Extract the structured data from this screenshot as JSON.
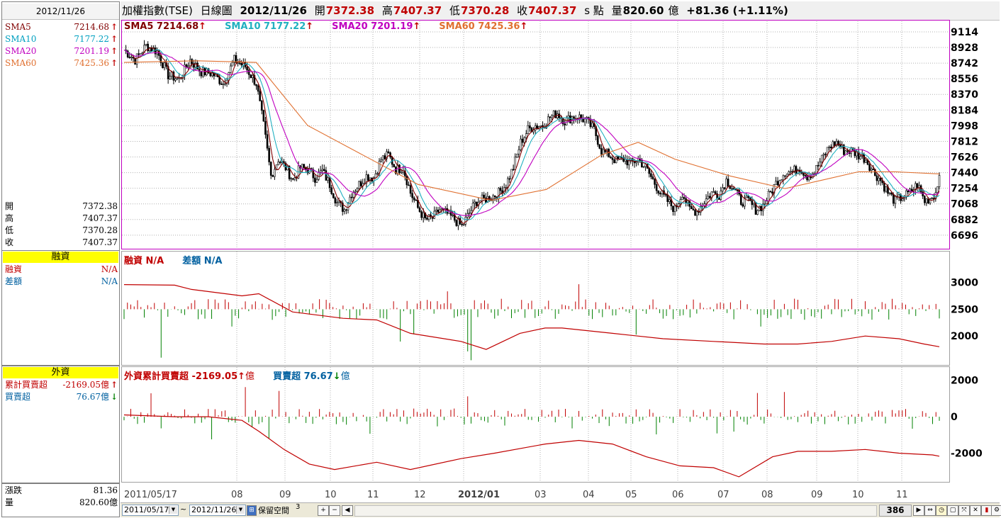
{
  "left": {
    "date": "2012/11/26",
    "sma": [
      {
        "label": "SMA5",
        "value": "7214.68",
        "color": "#800000"
      },
      {
        "label": "SMA10",
        "value": "7177.22",
        "color": "#00a0c0"
      },
      {
        "label": "SMA20",
        "value": "7201.19",
        "color": "#c000c0"
      },
      {
        "label": "SMA60",
        "value": "7425.36",
        "color": "#e07030"
      }
    ],
    "ohlc": [
      {
        "label": "開",
        "value": "7372.38"
      },
      {
        "label": "高",
        "value": "7407.37"
      },
      {
        "label": "低",
        "value": "7370.28"
      },
      {
        "label": "收",
        "value": "7407.37"
      }
    ],
    "margin_title": "融資",
    "margin_rows": [
      {
        "label": "融資",
        "value": "N/A",
        "color": "#c00000"
      },
      {
        "label": "差額",
        "value": "N/A",
        "color": "#0060a0"
      }
    ],
    "foreign_title": "外資",
    "foreign_rows": [
      {
        "label": "累計買賣超",
        "value": "-2169.05億",
        "color": "#c00000"
      },
      {
        "label": "買賣超",
        "value": "76.67億",
        "color": "#0060a0"
      }
    ],
    "bottom_rows": [
      {
        "label": "漲跌",
        "value": "81.36"
      },
      {
        "label": "量",
        "value": "820.60億"
      }
    ]
  },
  "header": {
    "title": "加權指數(TSE)",
    "period": "日線圖",
    "date": "2012/11/26",
    "open_label": "開",
    "open": "7372.38",
    "high_label": "高",
    "high": "7407.37",
    "low_label": "低",
    "low": "7370.28",
    "close_label": "收",
    "close": "7407.37",
    "unit": "s 點",
    "vol_label": "量",
    "vol": "820.60",
    "vol_unit": "億",
    "change": "+81.36 (+1.11%)"
  },
  "legends": {
    "price": [
      {
        "text": "SMA5 7214.68",
        "color": "#800000"
      },
      {
        "text": "SMA10 7177.22",
        "color": "#20b0c0"
      },
      {
        "text": "SMA20 7201.19",
        "color": "#c000c0"
      },
      {
        "text": "SMA60 7425.36",
        "color": "#e07030"
      }
    ],
    "margin": [
      {
        "text": "融資 N/A",
        "color": "#c00000"
      },
      {
        "text": "差額 N/A",
        "color": "#0060a0"
      }
    ],
    "foreign": [
      {
        "text": "外資累計買賣超 -2169.05",
        "suffix": "億",
        "color": "#c00000"
      },
      {
        "text": "買賣超 76.67",
        "suffix": "億",
        "color": "#0060a0"
      }
    ]
  },
  "toolbar": {
    "start_date": "2011/05/17",
    "tilde": "~",
    "end_date": "2012/11/26",
    "reserve_label": "保留空間",
    "reserve_value": "3",
    "bars": "386"
  },
  "chart_data": [
    {
      "type": "candlestick",
      "title": "加權指數(TSE) 日線圖",
      "x_ticks": [
        "2011/05/17",
        "08",
        "09",
        "10",
        "11",
        "12",
        "2012/01",
        "03",
        "04",
        "05",
        "06",
        "07",
        "08",
        "09",
        "10",
        "11"
      ],
      "y_ticks": [
        9114,
        8928,
        8742,
        8556,
        8370,
        8184,
        7998,
        7812,
        7626,
        7440,
        7254,
        7068,
        6882,
        6696
      ],
      "ylim": [
        6560,
        9240
      ],
      "close_path": [
        [
          0,
          8900
        ],
        [
          6,
          8780
        ],
        [
          12,
          8950
        ],
        [
          18,
          8880
        ],
        [
          24,
          8600
        ],
        [
          30,
          8550
        ],
        [
          36,
          8780
        ],
        [
          42,
          8640
        ],
        [
          48,
          8620
        ],
        [
          54,
          8500
        ],
        [
          60,
          8780
        ],
        [
          66,
          8700
        ],
        [
          72,
          8500
        ],
        [
          76,
          8000
        ],
        [
          80,
          7400
        ],
        [
          84,
          7600
        ],
        [
          88,
          7500
        ],
        [
          92,
          7350
        ],
        [
          96,
          7500
        ],
        [
          100,
          7480
        ],
        [
          104,
          7380
        ],
        [
          108,
          7460
        ],
        [
          112,
          7300
        ],
        [
          116,
          7080
        ],
        [
          120,
          7000
        ],
        [
          124,
          7200
        ],
        [
          128,
          7300
        ],
        [
          132,
          7400
        ],
        [
          136,
          7380
        ],
        [
          140,
          7600
        ],
        [
          144,
          7650
        ],
        [
          148,
          7480
        ],
        [
          152,
          7500
        ],
        [
          156,
          7200
        ],
        [
          160,
          7020
        ],
        [
          164,
          6880
        ],
        [
          168,
          6900
        ],
        [
          172,
          7000
        ],
        [
          176,
          6950
        ],
        [
          180,
          6880
        ],
        [
          184,
          6800
        ],
        [
          188,
          6960
        ],
        [
          192,
          7100
        ],
        [
          196,
          7120
        ],
        [
          200,
          7150
        ],
        [
          204,
          7200
        ],
        [
          208,
          7300
        ],
        [
          212,
          7500
        ],
        [
          216,
          7800
        ],
        [
          220,
          7950
        ],
        [
          224,
          8000
        ],
        [
          228,
          8000
        ],
        [
          232,
          8100
        ],
        [
          236,
          8150
        ],
        [
          240,
          8050
        ],
        [
          244,
          8100
        ],
        [
          248,
          8100
        ],
        [
          252,
          8050
        ],
        [
          256,
          7950
        ],
        [
          260,
          7700
        ],
        [
          264,
          7650
        ],
        [
          268,
          7580
        ],
        [
          272,
          7600
        ],
        [
          276,
          7550
        ],
        [
          280,
          7600
        ],
        [
          284,
          7500
        ],
        [
          288,
          7350
        ],
        [
          292,
          7200
        ],
        [
          296,
          7100
        ],
        [
          300,
          7000
        ],
        [
          304,
          7200
        ],
        [
          308,
          7000
        ],
        [
          312,
          6980
        ],
        [
          316,
          7100
        ],
        [
          320,
          7200
        ],
        [
          324,
          7180
        ],
        [
          328,
          7350
        ],
        [
          332,
          7250
        ],
        [
          336,
          7100
        ],
        [
          340,
          7100
        ],
        [
          344,
          7000
        ],
        [
          348,
          7050
        ],
        [
          352,
          7200
        ],
        [
          356,
          7350
        ],
        [
          360,
          7450
        ],
        [
          364,
          7450
        ],
        [
          368,
          7500
        ],
        [
          372,
          7400
        ],
        [
          376,
          7450
        ],
        [
          380,
          7600
        ],
        [
          384,
          7750
        ],
        [
          388,
          7800
        ],
        [
          392,
          7700
        ],
        [
          396,
          7700
        ],
        [
          400,
          7650
        ],
        [
          404,
          7600
        ],
        [
          408,
          7450
        ],
        [
          412,
          7350
        ],
        [
          416,
          7200
        ],
        [
          420,
          7100
        ],
        [
          424,
          7150
        ],
        [
          428,
          7200
        ],
        [
          432,
          7300
        ],
        [
          436,
          7100
        ],
        [
          440,
          7150
        ],
        [
          442,
          7200
        ],
        [
          444,
          7407
        ]
      ],
      "sma60_path": [
        [
          0,
          8750
        ],
        [
          40,
          8770
        ],
        [
          72,
          8750
        ],
        [
          100,
          8000
        ],
        [
          130,
          7650
        ],
        [
          160,
          7300
        ],
        [
          200,
          7110
        ],
        [
          230,
          7240
        ],
        [
          260,
          7650
        ],
        [
          280,
          7800
        ],
        [
          300,
          7600
        ],
        [
          330,
          7400
        ],
        [
          360,
          7250
        ],
        [
          380,
          7350
        ],
        [
          400,
          7450
        ],
        [
          420,
          7450
        ],
        [
          444,
          7425
        ]
      ],
      "series": [
        {
          "name": "SMA5",
          "last": 7214.68
        },
        {
          "name": "SMA10",
          "last": 7177.22
        },
        {
          "name": "SMA20",
          "last": 7201.19
        },
        {
          "name": "SMA60",
          "last": 7425.36
        }
      ]
    },
    {
      "type": "bar",
      "title": "融資",
      "y_ticks": [
        3000,
        2500,
        2000
      ],
      "ylim": [
        1500,
        3550
      ],
      "line_path": [
        [
          0,
          2960
        ],
        [
          30,
          2950
        ],
        [
          40,
          2870
        ],
        [
          70,
          2750
        ],
        [
          80,
          2790
        ],
        [
          100,
          2450
        ],
        [
          130,
          2330
        ],
        [
          150,
          2300
        ],
        [
          170,
          2050
        ],
        [
          200,
          1900
        ],
        [
          215,
          1750
        ],
        [
          235,
          2050
        ],
        [
          250,
          2150
        ],
        [
          260,
          2150
        ],
        [
          290,
          2050
        ],
        [
          320,
          1950
        ],
        [
          350,
          1900
        ],
        [
          380,
          1850
        ],
        [
          400,
          1850
        ],
        [
          420,
          1900
        ],
        [
          440,
          2000
        ],
        [
          460,
          1950
        ],
        [
          475,
          1850
        ],
        [
          484,
          1800
        ]
      ],
      "bars": "daily changes, green negative / red positive"
    },
    {
      "type": "bar",
      "title": "外資累計買賣超",
      "y_ticks": [
        2000,
        0,
        -2000
      ],
      "ylim": [
        -3500,
        2650
      ],
      "line_path": [
        [
          0,
          100
        ],
        [
          30,
          0
        ],
        [
          50,
          0
        ],
        [
          70,
          -200
        ],
        [
          80,
          -800
        ],
        [
          95,
          -1800
        ],
        [
          110,
          -2600
        ],
        [
          125,
          -2900
        ],
        [
          150,
          -2500
        ],
        [
          170,
          -2900
        ],
        [
          200,
          -2300
        ],
        [
          220,
          -2000
        ],
        [
          250,
          -1500
        ],
        [
          270,
          -1300
        ],
        [
          290,
          -1500
        ],
        [
          310,
          -2200
        ],
        [
          330,
          -2700
        ],
        [
          350,
          -2800
        ],
        [
          365,
          -3300
        ],
        [
          385,
          -2200
        ],
        [
          400,
          -1900
        ],
        [
          420,
          -1900
        ],
        [
          440,
          -1800
        ],
        [
          460,
          -2000
        ],
        [
          480,
          -2100
        ],
        [
          484,
          -2169
        ]
      ],
      "last_flow": 76.67
    }
  ]
}
